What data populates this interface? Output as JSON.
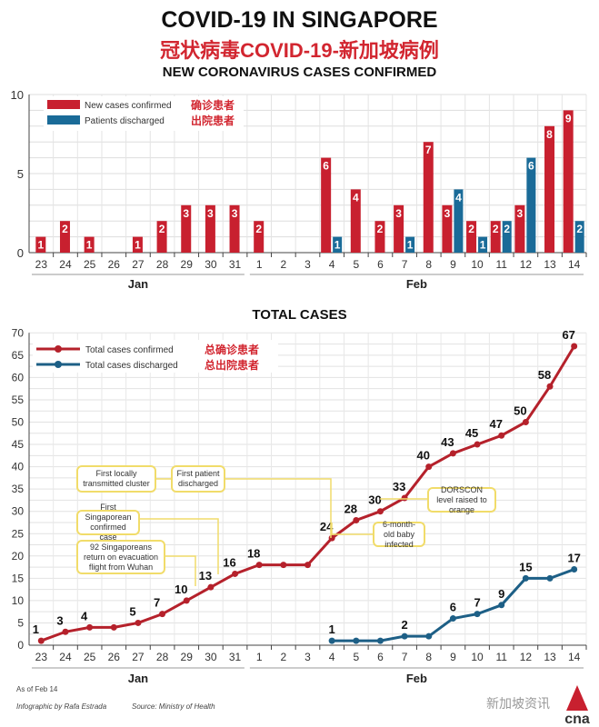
{
  "title": "COVID-19 IN SINGAPORE",
  "title_cn": "冠状病毒COVID-19-新加坡病例",
  "subtitle": "NEW CORONAVIRUS CASES CONFIRMED",
  "colors": {
    "red": "#c8202f",
    "blue": "#1a6b98",
    "line_red": "#b5212b",
    "line_blue": "#1d5f86",
    "annotation": "#f1dc6a"
  },
  "chart_data": [
    {
      "type": "bar",
      "title": "NEW CORONAVIRUS CASES CONFIRMED",
      "categories": [
        "23",
        "24",
        "25",
        "26",
        "27",
        "28",
        "29",
        "30",
        "31",
        "1",
        "2",
        "3",
        "4",
        "5",
        "6",
        "7",
        "8",
        "9",
        "10",
        "11",
        "12",
        "13",
        "14"
      ],
      "month_groups": [
        {
          "label": "Jan",
          "from": 0,
          "to": 8
        },
        {
          "label": "Feb",
          "from": 9,
          "to": 22
        }
      ],
      "yticks": [
        0,
        5,
        10
      ],
      "ylim": [
        0,
        10
      ],
      "grid": true,
      "legend_position": "top-left",
      "series": [
        {
          "name": "New cases confirmed",
          "name_cn": "确诊患者",
          "values": [
            1,
            2,
            1,
            0,
            1,
            2,
            3,
            3,
            3,
            2,
            0,
            0,
            6,
            4,
            2,
            3,
            7,
            3,
            2,
            2,
            3,
            8,
            9
          ]
        },
        {
          "name": "Patients discharged",
          "name_cn": "出院患者",
          "values": [
            0,
            0,
            0,
            0,
            0,
            0,
            0,
            0,
            0,
            0,
            0,
            0,
            1,
            0,
            0,
            1,
            0,
            4,
            1,
            2,
            6,
            0,
            2
          ]
        }
      ]
    },
    {
      "type": "line",
      "title": "TOTAL CASES",
      "categories": [
        "23",
        "24",
        "25",
        "26",
        "27",
        "28",
        "29",
        "30",
        "31",
        "1",
        "2",
        "3",
        "4",
        "5",
        "6",
        "7",
        "8",
        "9",
        "10",
        "11",
        "12",
        "13",
        "14"
      ],
      "month_groups": [
        {
          "label": "Jan",
          "from": 0,
          "to": 8
        },
        {
          "label": "Feb",
          "from": 9,
          "to": 22
        }
      ],
      "yticks": [
        0,
        5,
        10,
        15,
        20,
        25,
        30,
        35,
        40,
        45,
        50,
        55,
        60,
        65,
        70
      ],
      "ylim": [
        0,
        70
      ],
      "grid": true,
      "legend_position": "top-left",
      "series": [
        {
          "name": "Total cases confirmed",
          "name_cn": "总确诊患者",
          "values": [
            1,
            3,
            4,
            4,
            5,
            7,
            10,
            13,
            16,
            18,
            18,
            18,
            24,
            28,
            30,
            33,
            40,
            43,
            45,
            47,
            50,
            58,
            67
          ],
          "labels": [
            "1",
            "3",
            "4",
            "",
            "5",
            "7",
            "10",
            "13",
            "16",
            "18",
            "",
            "",
            "24",
            "28",
            "30",
            "33",
            "40",
            "43",
            "45",
            "47",
            "50",
            "58",
            "67"
          ]
        },
        {
          "name": "Total cases discharged",
          "name_cn": "总出院患者",
          "values": [
            null,
            null,
            null,
            null,
            null,
            null,
            null,
            null,
            null,
            null,
            null,
            null,
            1,
            1,
            1,
            2,
            2,
            6,
            7,
            9,
            15,
            15,
            17
          ],
          "labels": [
            "",
            "",
            "",
            "",
            "",
            "",
            "",
            "",
            "",
            "",
            "",
            "",
            "1",
            "",
            "",
            "2",
            "",
            "6",
            "7",
            "9",
            "15",
            "",
            "17"
          ]
        }
      ],
      "annotations": [
        "First locally transmitted cluster",
        "First patient discharged",
        "First Singaporean confirmed case",
        "92 Singaporeans return on evacuation flight from Wuhan",
        "DORSCON level raised to orange",
        "6-month-old baby infected"
      ]
    }
  ],
  "footer": {
    "as_of": "As of Feb 14",
    "credit": "Infographic by Rafa Estrada",
    "source": "Source: Ministry of Health",
    "watermark": "新加坡资讯",
    "logo": "cna"
  }
}
